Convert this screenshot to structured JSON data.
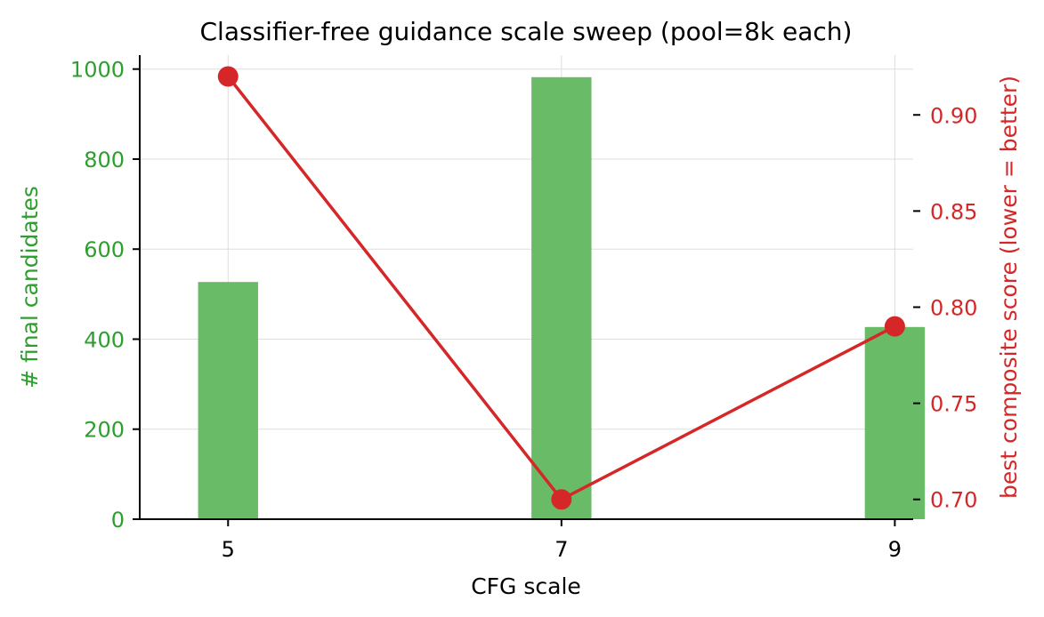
{
  "chart_data": {
    "type": "bar",
    "title": "Classifier-free guidance scale sweep (pool=8k each)",
    "xlabel": "CFG scale",
    "ylabel_left": "# final candidates",
    "ylabel_right": "best composite score (lower = better)",
    "x_ticks": [
      "5",
      "7",
      "9"
    ],
    "categories": [
      5,
      7,
      9
    ],
    "x_range": [
      4.47,
      9.11
    ],
    "bar_offset": -0.18,
    "bar_width": 0.36,
    "series": [
      {
        "kind": "bar",
        "axis": "left",
        "values": [
          527,
          982,
          427
        ],
        "color": "#6abb68"
      },
      {
        "kind": "line",
        "axis": "right",
        "values": [
          0.92,
          0.7,
          0.79
        ],
        "color": "#d62728"
      }
    ],
    "y_left": {
      "range": [
        0,
        1031
      ],
      "ticks": [
        0,
        200,
        400,
        600,
        800,
        1000
      ],
      "color": "#2ca02c"
    },
    "y_right": {
      "range": [
        0.6897,
        0.9311
      ],
      "ticks": [
        0.7,
        0.75,
        0.8,
        0.85,
        0.9
      ],
      "tick_labels": [
        "0.70",
        "0.75",
        "0.80",
        "0.85",
        "0.90"
      ],
      "color": "#d62728"
    },
    "grid": true
  }
}
